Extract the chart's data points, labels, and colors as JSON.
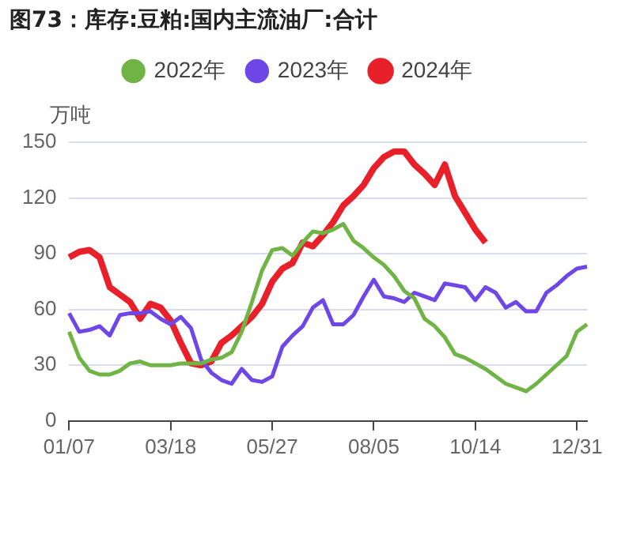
{
  "chart_data": {
    "type": "line",
    "title": "图73：库存:豆粕:国内主流油厂:合计",
    "ylabel": "万吨",
    "categories": [
      "01/07",
      null,
      null,
      null,
      null,
      null,
      null,
      null,
      null,
      null,
      "03/18",
      null,
      null,
      null,
      null,
      null,
      null,
      null,
      null,
      null,
      "05/27",
      null,
      null,
      null,
      null,
      null,
      null,
      null,
      null,
      null,
      "08/05",
      null,
      null,
      null,
      null,
      null,
      null,
      null,
      null,
      null,
      "10/14",
      null,
      null,
      null,
      null,
      null,
      null,
      null,
      null,
      null,
      "12/31",
      null
    ],
    "series": [
      {
        "name": "2022年",
        "color": "#70b445",
        "values": [
          48,
          34,
          27,
          25,
          25,
          27,
          31,
          32,
          30,
          30,
          30,
          31,
          31,
          31,
          33,
          34,
          37,
          48,
          64,
          81,
          92,
          93,
          89,
          96,
          102,
          101,
          103,
          106,
          97,
          93,
          88,
          84,
          78,
          70,
          66,
          55,
          51,
          45,
          36,
          34,
          31,
          28,
          24,
          20,
          18,
          16,
          20,
          25,
          30,
          35,
          48,
          52
        ]
      },
      {
        "name": "2023年",
        "color": "#6e47e6",
        "values": [
          58,
          48,
          49,
          51,
          46,
          57,
          58,
          58,
          59,
          55,
          52,
          56,
          50,
          33,
          26,
          22,
          20,
          28,
          22,
          21,
          24,
          40,
          46,
          51,
          61,
          65,
          52,
          52,
          57,
          67,
          76,
          67,
          66,
          64,
          69,
          67,
          65,
          74,
          73,
          72,
          65,
          72,
          69,
          61,
          64,
          59,
          59,
          69,
          73,
          78,
          82,
          83
        ]
      },
      {
        "name": "2024年",
        "color": "#e8202a",
        "values": [
          88,
          91,
          92,
          88,
          72,
          68,
          64,
          55,
          63,
          61,
          54,
          42,
          31,
          30,
          32,
          42,
          46,
          51,
          56,
          63,
          75,
          82,
          85,
          96,
          94,
          100,
          107,
          116,
          121,
          127,
          136,
          142,
          145,
          145,
          138,
          133,
          127,
          138,
          121,
          112,
          103,
          96,
          null,
          null,
          null,
          null,
          null,
          null,
          null,
          null,
          null,
          null
        ]
      }
    ],
    "ylim": [
      0,
      150
    ],
    "yticks": [
      0,
      30,
      60,
      90,
      120,
      150
    ],
    "grid": "y",
    "legend": "top",
    "marker": "none"
  }
}
